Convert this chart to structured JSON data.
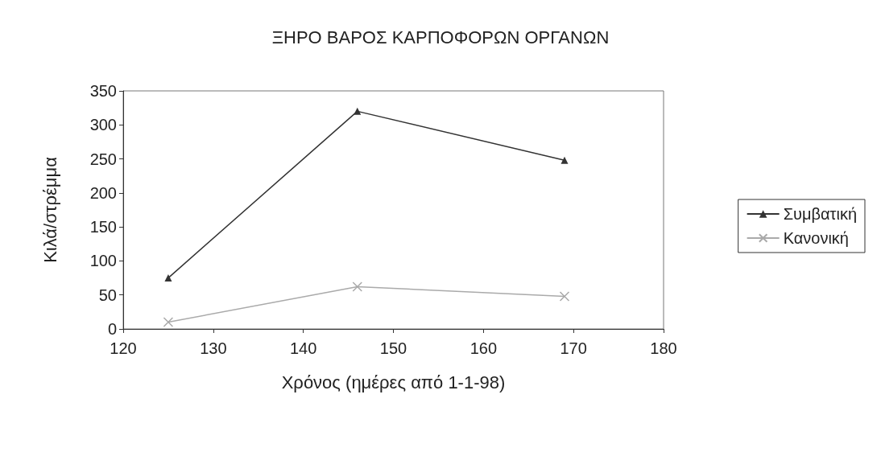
{
  "chart_data": {
    "type": "line",
    "title": "ΞΗΡΟ ΒΑΡΟΣ ΚΑΡΠΟΦΟΡΩΝ ΟΡΓΑΝΩΝ",
    "xlabel": "Χρόνος (ημέρες από 1-1-98)",
    "ylabel": "Κιλά/στρέμμα",
    "x": [
      125,
      146,
      169
    ],
    "series": [
      {
        "name": "Συμβατική",
        "color": "#333333",
        "marker": "triangle",
        "values": [
          75,
          320,
          248
        ]
      },
      {
        "name": "Κανονική",
        "color": "#aaaaaa",
        "marker": "cross",
        "values": [
          10,
          62,
          48
        ]
      }
    ],
    "xlim": [
      120,
      180
    ],
    "xticks": [
      120,
      130,
      140,
      150,
      160,
      170,
      180
    ],
    "ylim": [
      0,
      350
    ],
    "yticks": [
      0,
      50,
      100,
      150,
      200,
      250,
      300,
      350
    ],
    "grid": false,
    "legend": "right"
  }
}
